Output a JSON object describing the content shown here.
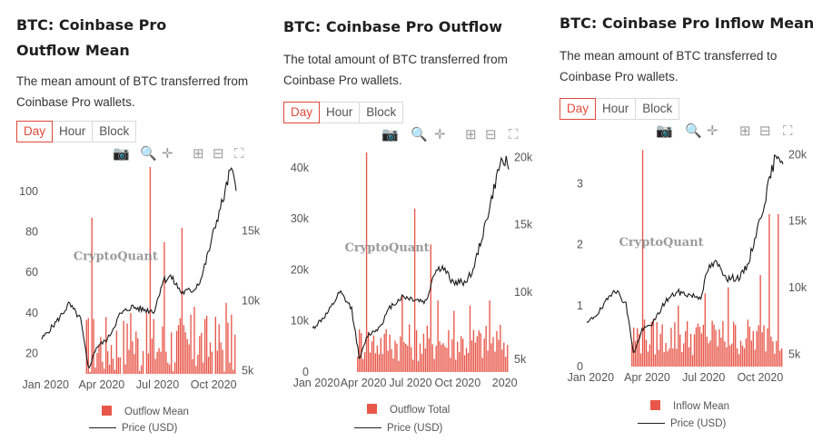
{
  "colors": {
    "bar": "#e8574a",
    "line": "#1a1a1a",
    "accent": "#e04a3a"
  },
  "tabs": [
    "Day",
    "Hour",
    "Block"
  ],
  "active_tab": "Day",
  "toolbar_icons": [
    "camera-icon",
    "zoom-icon",
    "pan-icon",
    "zoom-in-icon",
    "zoom-out-icon",
    "autoscale-icon"
  ],
  "watermark": "CryptoQuant",
  "panels": [
    {
      "title": "BTC: Coinbase Pro Outflow Mean",
      "description": "The mean amount of BTC transferred from Coinbase Pro wallets.",
      "legend": {
        "bars": "Outflow Mean",
        "line": "Price (USD)"
      }
    },
    {
      "title": "BTC: Coinbase Pro Outflow",
      "description": "The total amount of BTC transferred from Coinbase Pro wallets.",
      "legend": {
        "bars": "Outflow Total",
        "line": "Price (USD)"
      }
    },
    {
      "title": "BTC: Coinbase Pro Inflow Mean",
      "description": "The mean amount of BTC transferred to Coinbase Pro wallets.",
      "legend": {
        "bars": "Inflow Mean",
        "line": "Price (USD)"
      }
    }
  ],
  "chart_data": [
    {
      "type": "bar",
      "title": "BTC: Coinbase Pro Outflow Mean",
      "x_ticks": [
        "Jan 2020",
        "Apr 2020",
        "Jul 2020",
        "Oct 2020"
      ],
      "y_left": {
        "ticks": [
          "20",
          "40",
          "60",
          "80",
          "100"
        ],
        "range": [
          10,
          112
        ]
      },
      "y_right": {
        "ticks": [
          "5k",
          "10k",
          "15k"
        ],
        "range": [
          4700,
          19500
        ]
      },
      "series": [
        {
          "name": "Outflow Mean",
          "type": "bar",
          "base_level": 25,
          "spikes": [
            [
              0.25,
              87
            ],
            [
              0.45,
              40
            ],
            [
              0.55,
              112
            ],
            [
              0.63,
              75
            ],
            [
              0.72,
              82
            ],
            [
              0.78,
              43
            ],
            [
              0.95,
              45
            ]
          ]
        },
        {
          "name": "Price (USD)",
          "type": "line",
          "axis": "right",
          "points": [
            [
              0,
              7200
            ],
            [
              0.08,
              8500
            ],
            [
              0.14,
              9700
            ],
            [
              0.2,
              8600
            ],
            [
              0.24,
              5000
            ],
            [
              0.28,
              6600
            ],
            [
              0.34,
              7200
            ],
            [
              0.4,
              8900
            ],
            [
              0.46,
              9500
            ],
            [
              0.52,
              9300
            ],
            [
              0.58,
              9200
            ],
            [
              0.62,
              11300
            ],
            [
              0.66,
              11700
            ],
            [
              0.72,
              10500
            ],
            [
              0.78,
              10700
            ],
            [
              0.82,
              11500
            ],
            [
              0.86,
              13500
            ],
            [
              0.9,
              15700
            ],
            [
              0.94,
              17500
            ],
            [
              0.97,
              19300
            ],
            [
              1.0,
              18200
            ]
          ]
        }
      ]
    },
    {
      "type": "bar",
      "title": "BTC: Coinbase Pro Outflow",
      "x_ticks": [
        "Jan 2020",
        "Apr 2020",
        "Jul 2020",
        "Oct 2020",
        "2020"
      ],
      "y_left": {
        "ticks": [
          "0",
          "10k",
          "20k",
          "30k",
          "40k"
        ],
        "range": [
          0,
          43000
        ]
      },
      "y_right": {
        "ticks": [
          "5k",
          "10k",
          "15k",
          "20k"
        ],
        "range": [
          4000,
          20300
        ]
      },
      "series": [
        {
          "name": "Outflow Total",
          "type": "bar",
          "base_level": 6000,
          "spikes": [
            [
              0.27,
              43000
            ],
            [
              0.45,
              15000
            ],
            [
              0.52,
              32000
            ],
            [
              0.6,
              25000
            ],
            [
              0.64,
              14000
            ],
            [
              0.72,
              12000
            ],
            [
              0.8,
              13000
            ],
            [
              0.9,
              14000
            ]
          ]
        },
        {
          "name": "Price (USD)",
          "type": "line",
          "axis": "right",
          "points": [
            [
              0,
              7200
            ],
            [
              0.08,
              8400
            ],
            [
              0.14,
              9900
            ],
            [
              0.2,
              8700
            ],
            [
              0.24,
              4900
            ],
            [
              0.28,
              6700
            ],
            [
              0.34,
              7300
            ],
            [
              0.4,
              8900
            ],
            [
              0.46,
              9600
            ],
            [
              0.52,
              9400
            ],
            [
              0.58,
              9200
            ],
            [
              0.62,
              11400
            ],
            [
              0.66,
              11800
            ],
            [
              0.72,
              10600
            ],
            [
              0.78,
              10700
            ],
            [
              0.82,
              11600
            ],
            [
              0.86,
              13800
            ],
            [
              0.9,
              16000
            ],
            [
              0.94,
              18500
            ],
            [
              0.97,
              20000
            ],
            [
              1.0,
              19300
            ]
          ]
        }
      ]
    },
    {
      "type": "bar",
      "title": "BTC: Coinbase Pro Inflow Mean",
      "x_ticks": [
        "Jan 2020",
        "Apr 2020",
        "Jul 2020",
        "Oct 2020"
      ],
      "y_left": {
        "ticks": [
          "0",
          "1",
          "2",
          "3"
        ],
        "range": [
          0,
          3.6
        ]
      },
      "y_right": {
        "ticks": [
          "5k",
          "10k",
          "15k",
          "20k"
        ],
        "range": [
          4000,
          20500
        ]
      },
      "series": [
        {
          "name": "Inflow Mean",
          "type": "bar",
          "base_level": 0.5,
          "spikes": [
            [
              0.28,
              3.55
            ],
            [
              0.46,
              1.0
            ],
            [
              0.6,
              1.2
            ],
            [
              0.72,
              1.3
            ],
            [
              0.88,
              1.5
            ],
            [
              0.93,
              2.5
            ],
            [
              0.97,
              2.5
            ]
          ]
        },
        {
          "name": "Price (USD)",
          "type": "line",
          "axis": "right",
          "points": [
            [
              0,
              7200
            ],
            [
              0.08,
              8400
            ],
            [
              0.14,
              9900
            ],
            [
              0.2,
              8700
            ],
            [
              0.24,
              4900
            ],
            [
              0.28,
              6700
            ],
            [
              0.34,
              7300
            ],
            [
              0.4,
              8900
            ],
            [
              0.46,
              9600
            ],
            [
              0.52,
              9400
            ],
            [
              0.58,
              9200
            ],
            [
              0.62,
              11400
            ],
            [
              0.66,
              11800
            ],
            [
              0.72,
              10600
            ],
            [
              0.78,
              10700
            ],
            [
              0.82,
              11600
            ],
            [
              0.86,
              13800
            ],
            [
              0.9,
              16000
            ],
            [
              0.94,
              18500
            ],
            [
              0.97,
              20200
            ],
            [
              1.0,
              19300
            ]
          ]
        }
      ]
    }
  ]
}
